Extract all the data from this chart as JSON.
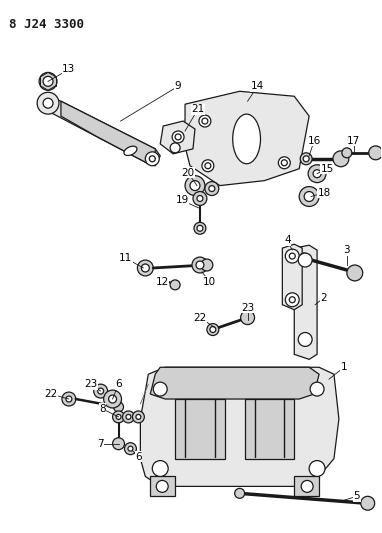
{
  "title": "8 J24 3300",
  "bg_color": "#ffffff",
  "fg_color": "#000000",
  "figsize": [
    3.82,
    5.33
  ],
  "dpi": 100
}
